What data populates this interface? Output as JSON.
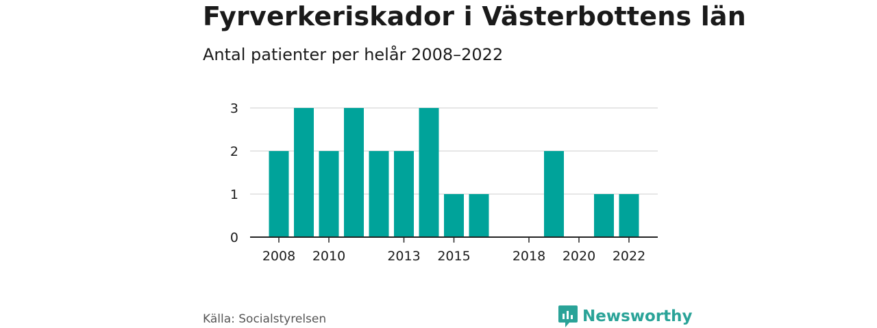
{
  "header": {
    "title": "Fyrverkeriskador i Västerbottens län",
    "subtitle": "Antal patienter per helår 2008–2022"
  },
  "footer": {
    "source": "Källa: Socialstyrelsen",
    "brand": "Newsworthy",
    "brand_icon": "newsworthy-logo-icon"
  },
  "colors": {
    "bar": "#00a39a",
    "grid": "#dddddd",
    "axis": "#222222",
    "brand": "#2aa398"
  },
  "chart_data": {
    "type": "bar",
    "categories": [
      "2008",
      "2009",
      "2010",
      "2011",
      "2012",
      "2013",
      "2014",
      "2015",
      "2016",
      "2017",
      "2018",
      "2019",
      "2020",
      "2021",
      "2022"
    ],
    "values": [
      2,
      3,
      2,
      3,
      2,
      2,
      3,
      1,
      1,
      0,
      0,
      2,
      0,
      1,
      1
    ],
    "x_tick_labels": [
      "2008",
      "2010",
      "2013",
      "2015",
      "2018",
      "2020",
      "2022"
    ],
    "y_ticks": [
      0,
      1,
      2,
      3
    ],
    "ylim": [
      0,
      3
    ],
    "grid": true,
    "legend": "none",
    "title": "Fyrverkeriskador i Västerbottens län",
    "subtitle": "Antal patienter per helår 2008–2022",
    "xlabel": "",
    "ylabel": ""
  }
}
